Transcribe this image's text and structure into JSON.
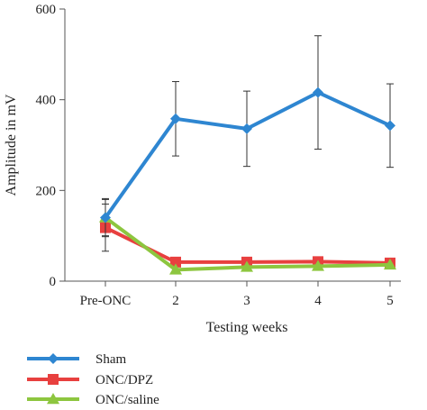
{
  "chart_data": {
    "type": "line",
    "title": "",
    "xlabel": "Testing weeks",
    "ylabel": "Amplitude in mV",
    "categories": [
      "Pre-ONC",
      "2",
      "3",
      "4",
      "5"
    ],
    "ylim": [
      0,
      600
    ],
    "yticks": [
      "0",
      "200",
      "400",
      "600"
    ],
    "grid": false,
    "legend_position": "bottom-left",
    "series": [
      {
        "name": "Sham",
        "marker": "diamond",
        "color": "#2E86D1",
        "values": [
          140,
          358,
          336,
          416,
          343
        ],
        "error": [
          42,
          82,
          83,
          125,
          92
        ]
      },
      {
        "name": "ONC/DPZ",
        "marker": "square",
        "color": "#E8403F",
        "values": [
          118,
          42,
          42,
          43,
          40
        ],
        "error": [
          52,
          0,
          0,
          0,
          0
        ]
      },
      {
        "name": "ONC/saline",
        "marker": "triangle",
        "color": "#8DC63F",
        "values": [
          140,
          25,
          31,
          33,
          36
        ],
        "error": [
          40,
          0,
          0,
          0,
          0
        ]
      }
    ]
  }
}
